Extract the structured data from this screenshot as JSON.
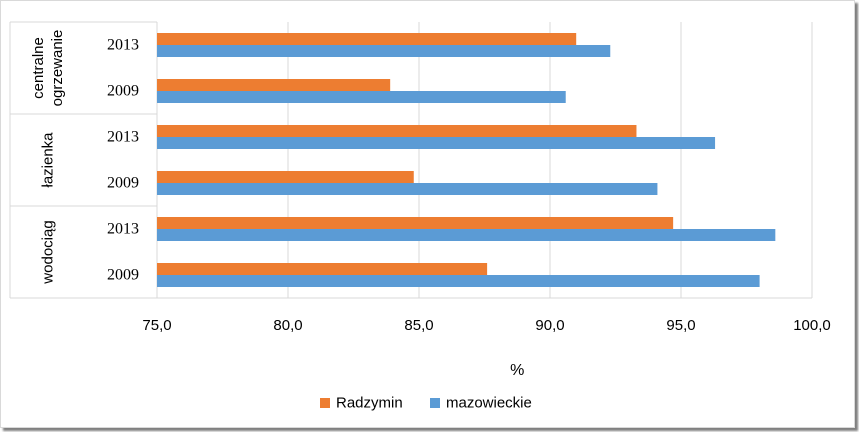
{
  "chart_data": {
    "type": "bar",
    "orientation": "horizontal",
    "groups": [
      {
        "label": "centralne ogrzewanie",
        "label_lines": [
          "centralne",
          "ogrzewanie"
        ],
        "categories": [
          "2013",
          "2009"
        ]
      },
      {
        "label": "łazienka",
        "label_lines": [
          "łazienka"
        ],
        "categories": [
          "2013",
          "2009"
        ]
      },
      {
        "label": "wodociąg",
        "label_lines": [
          "wodociąg"
        ],
        "categories": [
          "2013",
          "2009"
        ]
      }
    ],
    "series": [
      {
        "name": "Radzymin",
        "color": "#ED7D31",
        "values": [
          91.0,
          83.9,
          93.3,
          84.8,
          94.7,
          87.6
        ]
      },
      {
        "name": "mazowieckie",
        "color": "#5B9BD5",
        "values": [
          92.3,
          90.6,
          96.3,
          94.1,
          98.6,
          98.0
        ]
      }
    ],
    "xlim": [
      75,
      100
    ],
    "xticks": [
      "75,0",
      "80,0",
      "85,0",
      "90,0",
      "95,0",
      "100,0"
    ],
    "xtick_values": [
      75,
      80,
      85,
      90,
      95,
      100
    ],
    "xlabel": "%",
    "grid": true,
    "legend_position": "bottom"
  }
}
